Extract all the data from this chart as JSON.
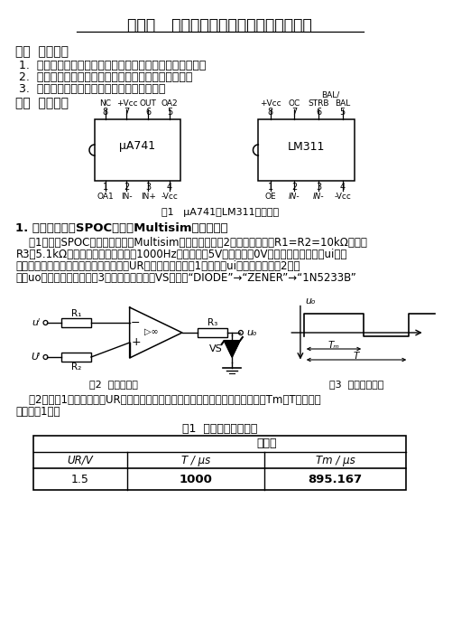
{
  "title": "实验：   集成运算放大器的非线性应用电路",
  "section1_title": "一、  实验目的",
  "item1": "1.  掌握单限比较器、滚回比较器的设计、测量和调试方法。",
  "item2": "2.  掌握电压比较器应用电路电压传输特性的测试方法。",
  "item3": "3.  学习集成电压比较器在电路设计中的应用。",
  "section2_title": "二、  实验内容",
  "fig1_caption": "图1   μA741和LM311的引脚图",
  "volt_section": "1. 电压比较器（SPOC实验、Multisim俷真实验）",
  "para1_l1": "    （1）学习SPOC实验内容，利用Multisim俷真软件，按图2接好电路，电阾R1=R2=10kΩ，电阾",
  "para1_l2": "R3为5.1kΩ，由函数信号发生器调出1000Hz，峰峰值为5V，偏移量为0V的正弦交流电压加至ui端，",
  "para1_l3": "按表中给定数值改变直流信号源输入电压UR，利用示波器通道1测量输入ui电压波形，通道2测量",
  "para1_l4": "输出uo端的矩形波波形如图3所示，其中稳压管VS选取：“DIODE”→“ZENER”→“1N5233B”",
  "fig2_caption": "图2  电压比较器",
  "fig3_caption": "图3  输出电压波形",
  "para2_l1": "    （2）按表1中给定值调节UR的大小，用示波器观察输出矩形波的变化，测量测量Tm和T的数值，",
  "para2_l2": "并记入表1中。",
  "table_title": "表1  电压比较器的测量",
  "table_header1": "测量值",
  "table_col1": "UR/V",
  "table_col2": "T / μs",
  "table_col3": "Tm / μs",
  "table_val1": "1.5",
  "table_val2": "1000",
  "table_val3": "895.167",
  "bg_color": "#ffffff",
  "text_color": "#000000"
}
